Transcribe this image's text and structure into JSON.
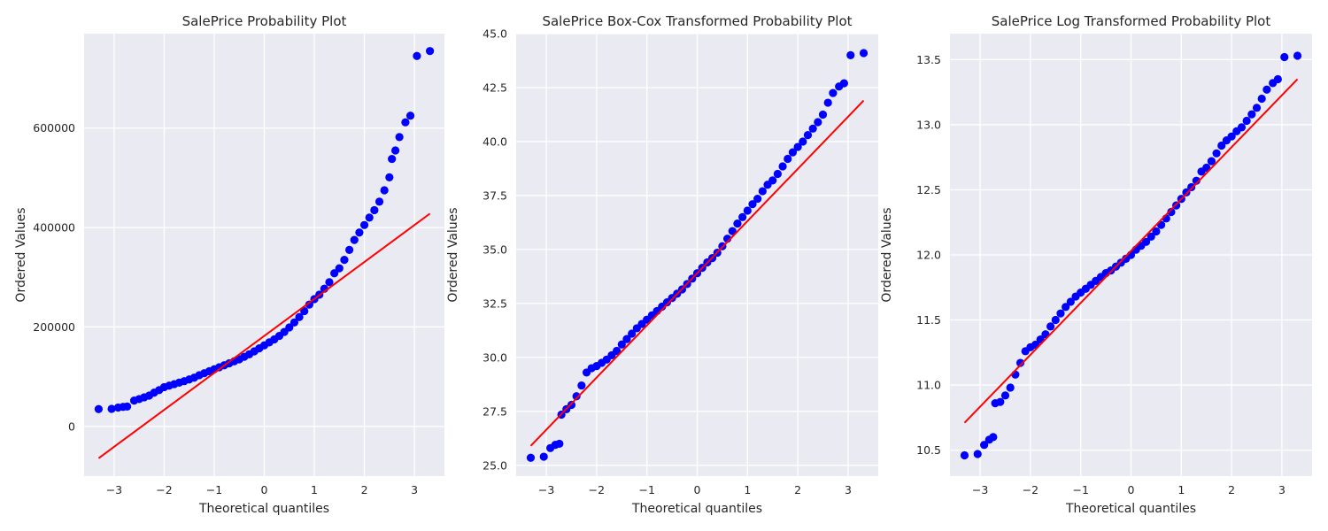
{
  "chart_data": [
    {
      "type": "scatter",
      "title": "SalePrice Probability Plot",
      "xlabel": "Theoretical quantiles",
      "ylabel": "Ordered Values",
      "xlim": [
        -3.6,
        3.6
      ],
      "ylim": [
        -100000,
        790000
      ],
      "xticks": [
        -3,
        -2,
        -1,
        0,
        1,
        2,
        3
      ],
      "xtick_labels": [
        "−3",
        "−2",
        "−1",
        "0",
        "1",
        "2",
        "3"
      ],
      "yticks": [
        0,
        200000,
        400000,
        600000
      ],
      "ytick_labels": [
        "0",
        "200000",
        "400000",
        "600000"
      ],
      "grid": true,
      "marker_color": "#0000ff",
      "line_color": "#ff0000",
      "fit_line": {
        "x": [
          -3.31,
          3.31
        ],
        "y": [
          -64000,
          428000
        ]
      },
      "points": [
        [
          -3.31,
          34900
        ],
        [
          -3.05,
          35311
        ],
        [
          -2.92,
          37900
        ],
        [
          -2.82,
          39300
        ],
        [
          -2.74,
          40000
        ],
        [
          -2.6,
          52000
        ],
        [
          -2.5,
          55000
        ],
        [
          -2.4,
          58500
        ],
        [
          -2.3,
          62000
        ],
        [
          -2.2,
          68000
        ],
        [
          -2.1,
          73000
        ],
        [
          -2.0,
          79000
        ],
        [
          -1.9,
          82000
        ],
        [
          -1.8,
          85000
        ],
        [
          -1.7,
          88000
        ],
        [
          -1.6,
          91000
        ],
        [
          -1.5,
          94500
        ],
        [
          -1.4,
          98000
        ],
        [
          -1.3,
          103000
        ],
        [
          -1.2,
          107000
        ],
        [
          -1.1,
          111000
        ],
        [
          -1.0,
          115000
        ],
        [
          -0.9,
          119000
        ],
        [
          -0.8,
          123000
        ],
        [
          -0.7,
          127000
        ],
        [
          -0.6,
          131000
        ],
        [
          -0.5,
          135000
        ],
        [
          -0.4,
          140000
        ],
        [
          -0.3,
          145000
        ],
        [
          -0.2,
          151000
        ],
        [
          -0.1,
          157000
        ],
        [
          0.0,
          163000
        ],
        [
          0.1,
          169000
        ],
        [
          0.2,
          175000
        ],
        [
          0.3,
          182000
        ],
        [
          0.4,
          190000
        ],
        [
          0.5,
          199000
        ],
        [
          0.6,
          209000
        ],
        [
          0.7,
          220000
        ],
        [
          0.8,
          232000
        ],
        [
          0.9,
          245000
        ],
        [
          1.0,
          256000
        ],
        [
          1.1,
          265000
        ],
        [
          1.2,
          277000
        ],
        [
          1.3,
          290000
        ],
        [
          1.4,
          308000
        ],
        [
          1.5,
          318000
        ],
        [
          1.6,
          335000
        ],
        [
          1.7,
          355000
        ],
        [
          1.8,
          375000
        ],
        [
          1.9,
          390000
        ],
        [
          2.0,
          405000
        ],
        [
          2.1,
          420000
        ],
        [
          2.2,
          435000
        ],
        [
          2.3,
          452000
        ],
        [
          2.4,
          475000
        ],
        [
          2.5,
          501000
        ],
        [
          2.55,
          538000
        ],
        [
          2.62,
          555000
        ],
        [
          2.7,
          582000
        ],
        [
          2.82,
          611657
        ],
        [
          2.92,
          625000
        ],
        [
          3.05,
          745000
        ],
        [
          3.31,
          755000
        ]
      ]
    },
    {
      "type": "scatter",
      "title": "SalePrice Box-Cox Transformed Probability Plot",
      "xlabel": "Theoretical quantiles",
      "ylabel": "Ordered Values",
      "xlim": [
        -3.6,
        3.6
      ],
      "ylim": [
        24.5,
        45.0
      ],
      "xticks": [
        -3,
        -2,
        -1,
        0,
        1,
        2,
        3
      ],
      "xtick_labels": [
        "−3",
        "−2",
        "−1",
        "0",
        "1",
        "2",
        "3"
      ],
      "yticks": [
        25.0,
        27.5,
        30.0,
        32.5,
        35.0,
        37.5,
        40.0,
        42.5,
        45.0
      ],
      "ytick_labels": [
        "25.0",
        "27.5",
        "30.0",
        "32.5",
        "35.0",
        "37.5",
        "40.0",
        "42.5",
        "45.0"
      ],
      "grid": true,
      "marker_color": "#0000ff",
      "line_color": "#ff0000",
      "fit_line": {
        "x": [
          -3.31,
          3.31
        ],
        "y": [
          25.9,
          41.9
        ]
      },
      "points": [
        [
          -3.31,
          25.35
        ],
        [
          -3.05,
          25.4
        ],
        [
          -2.92,
          25.8
        ],
        [
          -2.82,
          25.95
        ],
        [
          -2.74,
          26.0
        ],
        [
          -2.7,
          27.35
        ],
        [
          -2.6,
          27.6
        ],
        [
          -2.5,
          27.8
        ],
        [
          -2.4,
          28.2
        ],
        [
          -2.3,
          28.7
        ],
        [
          -2.2,
          29.3
        ],
        [
          -2.1,
          29.5
        ],
        [
          -2.0,
          29.6
        ],
        [
          -1.9,
          29.75
        ],
        [
          -1.8,
          29.9
        ],
        [
          -1.7,
          30.1
        ],
        [
          -1.6,
          30.3
        ],
        [
          -1.5,
          30.6
        ],
        [
          -1.4,
          30.85
        ],
        [
          -1.3,
          31.1
        ],
        [
          -1.2,
          31.35
        ],
        [
          -1.1,
          31.55
        ],
        [
          -1.0,
          31.75
        ],
        [
          -0.9,
          31.95
        ],
        [
          -0.8,
          32.15
        ],
        [
          -0.7,
          32.35
        ],
        [
          -0.6,
          32.55
        ],
        [
          -0.5,
          32.75
        ],
        [
          -0.4,
          32.95
        ],
        [
          -0.3,
          33.15
        ],
        [
          -0.2,
          33.4
        ],
        [
          -0.1,
          33.65
        ],
        [
          0.0,
          33.9
        ],
        [
          0.1,
          34.15
        ],
        [
          0.2,
          34.4
        ],
        [
          0.3,
          34.6
        ],
        [
          0.4,
          34.85
        ],
        [
          0.5,
          35.15
        ],
        [
          0.6,
          35.5
        ],
        [
          0.7,
          35.85
        ],
        [
          0.8,
          36.2
        ],
        [
          0.9,
          36.5
        ],
        [
          1.0,
          36.8
        ],
        [
          1.1,
          37.1
        ],
        [
          1.2,
          37.35
        ],
        [
          1.3,
          37.7
        ],
        [
          1.4,
          38.0
        ],
        [
          1.5,
          38.2
        ],
        [
          1.6,
          38.5
        ],
        [
          1.7,
          38.85
        ],
        [
          1.8,
          39.2
        ],
        [
          1.9,
          39.5
        ],
        [
          2.0,
          39.75
        ],
        [
          2.1,
          40.0
        ],
        [
          2.2,
          40.3
        ],
        [
          2.3,
          40.6
        ],
        [
          2.4,
          40.9
        ],
        [
          2.5,
          41.25
        ],
        [
          2.6,
          41.8
        ],
        [
          2.7,
          42.25
        ],
        [
          2.82,
          42.55
        ],
        [
          2.92,
          42.7
        ],
        [
          3.05,
          44.0
        ],
        [
          3.31,
          44.1
        ]
      ]
    },
    {
      "type": "scatter",
      "title": "SalePrice Log Transformed Probability Plot",
      "xlabel": "Theoretical quantiles",
      "ylabel": "Ordered Values",
      "xlim": [
        -3.6,
        3.6
      ],
      "ylim": [
        10.3,
        13.7
      ],
      "xticks": [
        -3,
        -2,
        -1,
        0,
        1,
        2,
        3
      ],
      "xtick_labels": [
        "−3",
        "−2",
        "−1",
        "0",
        "1",
        "2",
        "3"
      ],
      "yticks": [
        10.5,
        11.0,
        11.5,
        12.0,
        12.5,
        13.0,
        13.5
      ],
      "ytick_labels": [
        "10.5",
        "11.0",
        "11.5",
        "12.0",
        "12.5",
        "13.0",
        "13.5"
      ],
      "grid": true,
      "marker_color": "#0000ff",
      "line_color": "#ff0000",
      "fit_line": {
        "x": [
          -3.31,
          3.31
        ],
        "y": [
          10.71,
          13.35
        ]
      },
      "points": [
        [
          -3.31,
          10.46
        ],
        [
          -3.05,
          10.47
        ],
        [
          -2.92,
          10.54
        ],
        [
          -2.82,
          10.58
        ],
        [
          -2.74,
          10.6
        ],
        [
          -2.7,
          10.86
        ],
        [
          -2.6,
          10.87
        ],
        [
          -2.5,
          10.92
        ],
        [
          -2.4,
          10.98
        ],
        [
          -2.3,
          11.08
        ],
        [
          -2.2,
          11.17
        ],
        [
          -2.1,
          11.26
        ],
        [
          -2.0,
          11.29
        ],
        [
          -1.9,
          11.31
        ],
        [
          -1.8,
          11.35
        ],
        [
          -1.7,
          11.39
        ],
        [
          -1.6,
          11.45
        ],
        [
          -1.5,
          11.5
        ],
        [
          -1.4,
          11.55
        ],
        [
          -1.3,
          11.6
        ],
        [
          -1.2,
          11.64
        ],
        [
          -1.1,
          11.68
        ],
        [
          -1.0,
          11.71
        ],
        [
          -0.9,
          11.74
        ],
        [
          -0.8,
          11.77
        ],
        [
          -0.7,
          11.8
        ],
        [
          -0.6,
          11.83
        ],
        [
          -0.5,
          11.86
        ],
        [
          -0.4,
          11.88
        ],
        [
          -0.3,
          11.91
        ],
        [
          -0.2,
          11.94
        ],
        [
          -0.1,
          11.97
        ],
        [
          0.0,
          12.0
        ],
        [
          0.1,
          12.04
        ],
        [
          0.2,
          12.07
        ],
        [
          0.3,
          12.1
        ],
        [
          0.4,
          12.14
        ],
        [
          0.5,
          12.18
        ],
        [
          0.6,
          12.23
        ],
        [
          0.7,
          12.28
        ],
        [
          0.8,
          12.33
        ],
        [
          0.9,
          12.38
        ],
        [
          1.0,
          12.43
        ],
        [
          1.1,
          12.48
        ],
        [
          1.2,
          12.52
        ],
        [
          1.3,
          12.57
        ],
        [
          1.4,
          12.64
        ],
        [
          1.5,
          12.67
        ],
        [
          1.6,
          12.72
        ],
        [
          1.7,
          12.78
        ],
        [
          1.8,
          12.84
        ],
        [
          1.9,
          12.88
        ],
        [
          2.0,
          12.91
        ],
        [
          2.1,
          12.95
        ],
        [
          2.2,
          12.98
        ],
        [
          2.3,
          13.03
        ],
        [
          2.4,
          13.08
        ],
        [
          2.5,
          13.13
        ],
        [
          2.6,
          13.2
        ],
        [
          2.7,
          13.27
        ],
        [
          2.82,
          13.32
        ],
        [
          2.92,
          13.35
        ],
        [
          3.05,
          13.52
        ],
        [
          3.31,
          13.53
        ]
      ]
    }
  ]
}
